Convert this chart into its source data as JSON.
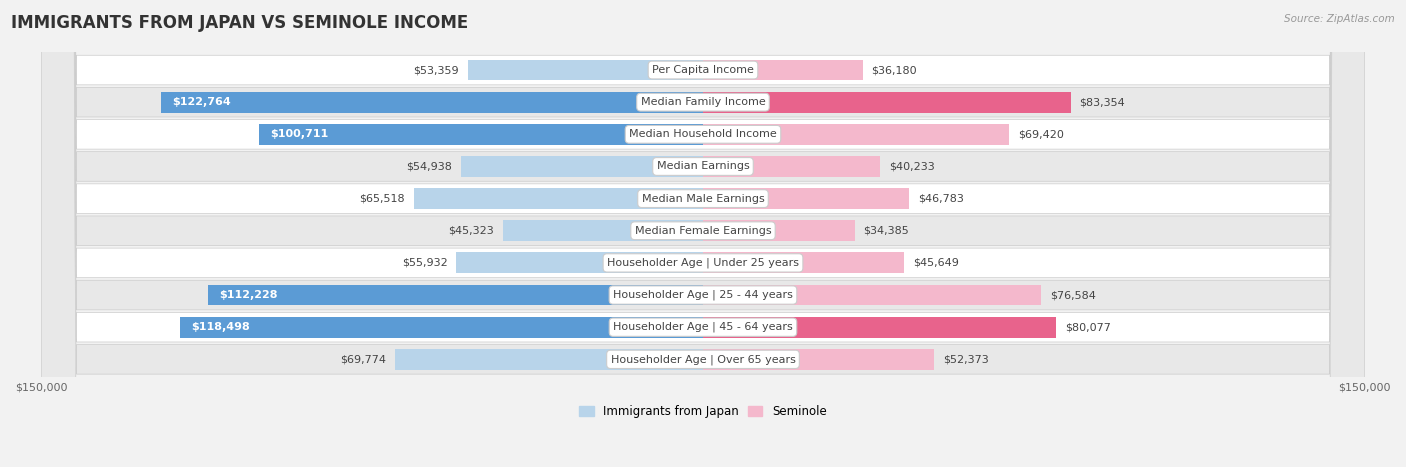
{
  "title": "IMMIGRANTS FROM JAPAN VS SEMINOLE INCOME",
  "source": "Source: ZipAtlas.com",
  "categories": [
    "Per Capita Income",
    "Median Family Income",
    "Median Household Income",
    "Median Earnings",
    "Median Male Earnings",
    "Median Female Earnings",
    "Householder Age | Under 25 years",
    "Householder Age | 25 - 44 years",
    "Householder Age | 45 - 64 years",
    "Householder Age | Over 65 years"
  ],
  "left_values": [
    53359,
    122764,
    100711,
    54938,
    65518,
    45323,
    55932,
    112228,
    118498,
    69774
  ],
  "right_values": [
    36180,
    83354,
    69420,
    40233,
    46783,
    34385,
    45649,
    76584,
    80077,
    52373
  ],
  "left_labels": [
    "$53,359",
    "$122,764",
    "$100,711",
    "$54,938",
    "$65,518",
    "$45,323",
    "$55,932",
    "$112,228",
    "$118,498",
    "$69,774"
  ],
  "right_labels": [
    "$36,180",
    "$83,354",
    "$69,420",
    "$40,233",
    "$46,783",
    "$34,385",
    "$45,649",
    "$76,584",
    "$80,077",
    "$52,373"
  ],
  "max_value": 150000,
  "left_color_light": "#b8d4ea",
  "left_color_dark": "#5b9bd5",
  "right_color_light": "#f4b8cc",
  "right_color_dark": "#e8638c",
  "threshold_dark": 80000,
  "left_legend": "Immigrants from Japan",
  "right_legend": "Seminole",
  "background_color": "#f2f2f2",
  "row_bg_even": "#ffffff",
  "row_bg_odd": "#e8e8e8",
  "title_fontsize": 12,
  "label_fontsize": 8,
  "category_fontsize": 8,
  "axis_fontsize": 8
}
